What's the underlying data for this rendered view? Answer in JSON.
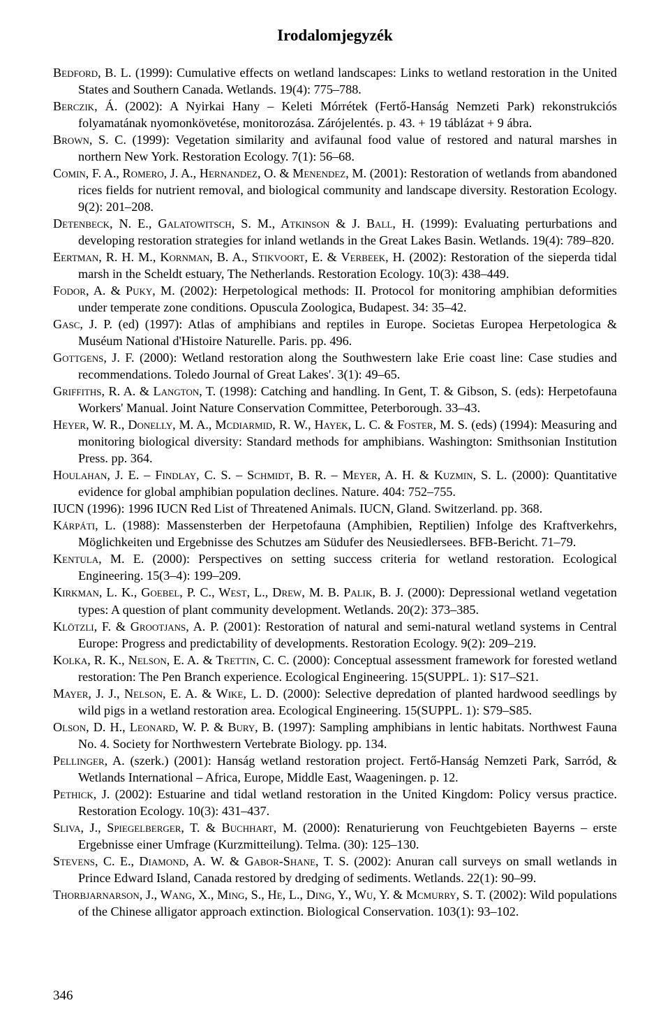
{
  "title": "Irodalomjegyzék",
  "pageNumber": "346",
  "refs": [
    {
      "author": "Bedford, B. L.",
      "rest": " (1999): Cumulative effects on wetland landscapes: Links to wetland restoration in the United States and Southern Canada. Wetlands. 19(4): 775–788."
    },
    {
      "author": "Berczik, Á.",
      "rest": " (2002): A Nyirkai Hany – Keleti Mórrétek (Fertő-Hanság Nemzeti Park) rekonstrukciós folyamatának nyomonkövetése, monitorozása. Zárójelentés. p. 43. + 19 táblázat + 9 ábra."
    },
    {
      "author": "Brown, S. C.",
      "rest": " (1999): Vegetation similarity and avifaunal food value of restored and natural marshes in northern New York. Restoration Ecology. 7(1): 56–68."
    },
    {
      "author": "Comin, F. A., Romero, J. A., Hernandez, O. & Menendez, M.",
      "rest": " (2001): Restoration of wetlands from abandoned rices fields for nutrient removal, and biological community and landscape diversity. Restoration Ecology. 9(2): 201–208."
    },
    {
      "author": "Detenbeck, N. E., Galatowitsch, S. M., Atkinson & J. Ball, H.",
      "rest": " (1999): Evaluating perturbations and developing restoration strategies for inland wetlands in the Great Lakes Basin. Wetlands. 19(4): 789–820."
    },
    {
      "author": "Eertman, R. H. M., Kornman, B. A., Stikvoort, E. & Verbeek, H.",
      "rest": " (2002): Restoration of the sieperda tidal marsh in the Scheldt estuary, The Netherlands. Restoration Ecology. 10(3): 438–449."
    },
    {
      "author": "Fodor, A. & Puky, M.",
      "rest": " (2002): Herpetological methods: II. Protocol for monitoring amphibian deformities under temperate zone conditions. Opuscula Zoologica, Budapest. 34: 35–42."
    },
    {
      "author": "Gasc, J. P.",
      "rest": " (ed) (1997): Atlas of amphibians and reptiles in Europe. Societas Europea Herpetologica & Muséum National d'Histoire Naturelle. Paris. pp. 496."
    },
    {
      "author": "Gottgens, J. F.",
      "rest": " (2000): Wetland restoration along the Southwestern lake Erie coast line: Case studies and recommendations. Toledo Journal of Great Lakes'. 3(1): 49–65."
    },
    {
      "author": "Griffiths, R. A. & Langton, T.",
      "rest": " (1998): Catching and handling. In Gent, T. & Gibson, S. (eds): Herpetofauna Workers' Manual. Joint Nature Conservation Committee, Peterborough. 33–43."
    },
    {
      "author": "Heyer, W. R., Donelly, M. A., Mcdiarmid, R. W., Hayek, L. C. & Foster, M. S.",
      "rest": " (eds) (1994): Measuring and monitoring biological diversity: Standard methods for amphibians. Washington: Smithsonian Institution Press. pp. 364."
    },
    {
      "author": "Houlahan, J. E. – Findlay, C. S. – Schmidt, B. R. – Meyer, A. H. & Kuzmin, S. L.",
      "rest": " (2000): Quantitative evidence for global amphibian population declines. Nature. 404: 752–755."
    },
    {
      "author": "",
      "rest": "IUCN (1996): 1996 IUCN Red List of Threatened Animals. IUCN, Gland. Switzerland. pp. 368."
    },
    {
      "author": "Kárpáti, L.",
      "rest": " (1988): Massensterben der Herpetofauna (Amphibien, Reptilien) Infolge des Kraftverkehrs, Möglichkeiten und Ergebnisse des Schutzes am Südufer des Neusiedlersees. BFB-Bericht. 71–79."
    },
    {
      "author": "Kentula, M. E.",
      "rest": " (2000): Perspectives on setting success criteria for wetland restoration. Ecological Engineering. 15(3–4): 199–209."
    },
    {
      "author": "Kirkman, L. K., Goebel, P. C., West, L., Drew, M. B. Palik, B. J.",
      "rest": " (2000): Depressional wetland vegetation types: A question of plant community development. Wetlands. 20(2): 373–385."
    },
    {
      "author": "Klötzli, F. & Grootjans, A. P.",
      "rest": " (2001): Restoration of natural and semi-natural wetland systems in Central Europe: Progress and predictability of developments. Restoration Ecology. 9(2): 209–219."
    },
    {
      "author": "Kolka, R. K., Nelson, E. A. & Trettin, C. C.",
      "rest": " (2000): Conceptual assessment framework for forested wetland restoration: The Pen Branch experience. Ecological Engineering. 15(SUPPL. 1): S17–S21."
    },
    {
      "author": "Mayer, J. J., Nelson, E. A. & Wike, L. D.",
      "rest": " (2000): Selective depredation of planted hardwood seedlings by wild pigs in a wetland restoration area. Ecological Engineering. 15(SUPPL. 1): S79–S85."
    },
    {
      "author": "Olson, D. H., Leonard, W. P. & Bury, B.",
      "rest": " (1997): Sampling amphibians in lentic habitats. Northwest Fauna No. 4. Society for Northwestern Vertebrate Biology. pp. 134."
    },
    {
      "author": "Pellinger, A.",
      "rest": " (szerk.) (2001): Hanság wetland restoration project. Fertő-Hanság Nemzeti Park, Sarród, & Wetlands International – Africa, Europe, Middle East, Waageningen. p. 12."
    },
    {
      "author": "Pethick, J.",
      "rest": " (2002): Estuarine and tidal wetland restoration in the United Kingdom: Policy versus practice. Restoration Ecology. 10(3): 431–437."
    },
    {
      "author": "Sliva, J., Spiegelberger, T. & Buchhart, M.",
      "rest": " (2000): Renaturierung von Feuchtgebieten Bayerns – erste Ergebnisse einer Umfrage (Kurzmitteilung). Telma. (30): 125–130."
    },
    {
      "author": "Stevens, C. E., Diamond, A. W. & Gabor-Shane, T. S.",
      "rest": " (2002): Anuran call surveys on small wetlands in Prince Edward Island, Canada restored by dredging of sediments. Wetlands. 22(1): 90–99."
    },
    {
      "author": "Thorbjarnarson, J., Wang, X., Ming, S., He, L., Ding, Y., Wu, Y. & Mcmurry, S. T.",
      "rest": " (2002): Wild populations of the Chinese alligator approach extinction. Biological Conservation. 103(1): 93–102."
    }
  ]
}
